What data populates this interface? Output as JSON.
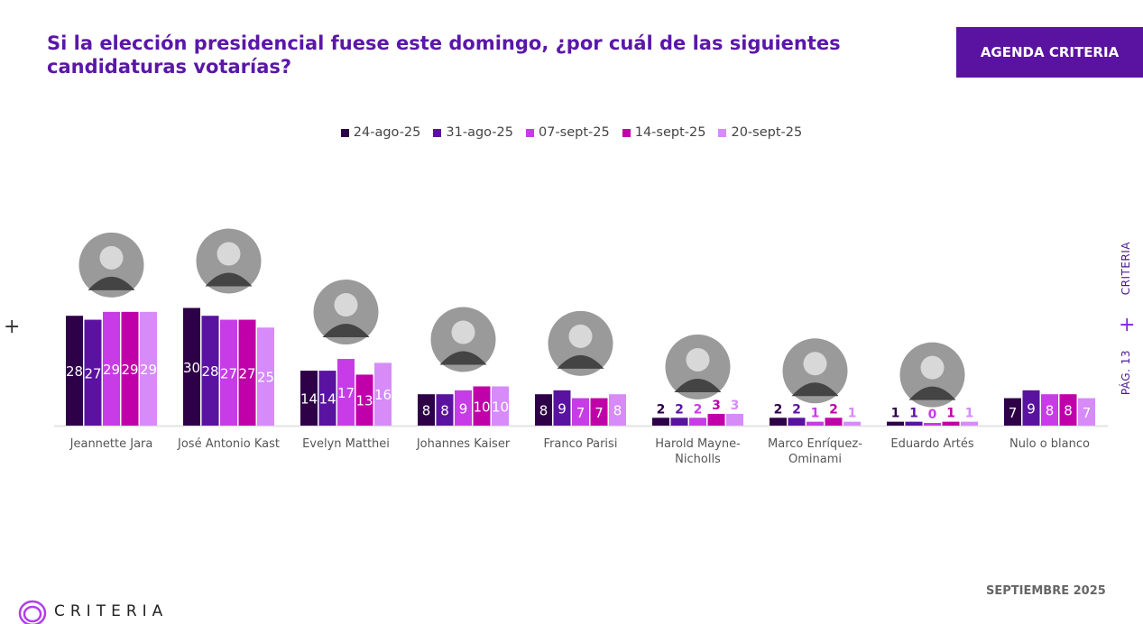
{
  "header": {
    "title": "Si la elección presidencial fuese este domingo, ¿por cuál de las siguientes candidaturas votarías?",
    "agenda_label": "AGENDA CRITERIA"
  },
  "side": {
    "brand": "CRITERIA",
    "page": "PÁG. 13"
  },
  "footer": {
    "date": "SEPTIEMBRE 2025",
    "logo_text": "CRITERIA"
  },
  "chart_data": {
    "type": "bar",
    "categories": [
      "Jeannette Jara",
      "José Antonio Kast",
      "Evelyn Matthei",
      "Johannes Kaiser",
      "Franco Parisi",
      "Harold Mayne-Nicholls",
      "Marco Enríquez-Ominami",
      "Eduardo Artés",
      "Nulo o blanco"
    ],
    "series": [
      {
        "name": "24-ago-25",
        "color": "#2d0047",
        "values": [
          28,
          30,
          14,
          8,
          8,
          2,
          2,
          1,
          7
        ]
      },
      {
        "name": "31-ago-25",
        "color": "#5a13a0",
        "values": [
          27,
          28,
          14,
          8,
          9,
          2,
          2,
          1,
          9
        ]
      },
      {
        "name": "07-sept-25",
        "color": "#c83ce8",
        "values": [
          29,
          27,
          17,
          9,
          7,
          2,
          1,
          0,
          8
        ]
      },
      {
        "name": "14-sept-25",
        "color": "#c000a8",
        "values": [
          29,
          27,
          13,
          10,
          7,
          3,
          2,
          1,
          8
        ]
      },
      {
        "name": "20-sept-25",
        "color": "#d68bf8",
        "values": [
          29,
          25,
          16,
          10,
          8,
          3,
          1,
          1,
          7
        ]
      }
    ],
    "photos": [
      true,
      true,
      true,
      true,
      true,
      true,
      true,
      true,
      false
    ],
    "legend": "top",
    "grid": false
  }
}
